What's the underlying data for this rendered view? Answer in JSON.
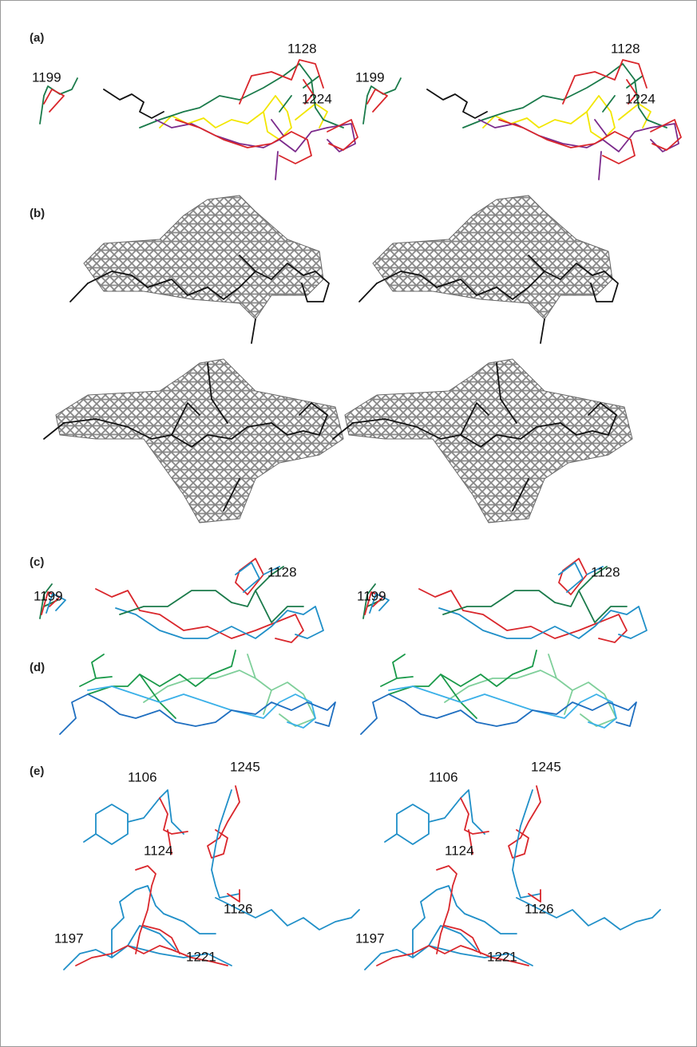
{
  "panels": [
    {
      "label": "(a)",
      "residues": [
        "1199",
        "1128",
        "1224"
      ]
    },
    {
      "label": "(b)"
    },
    {
      "label": "(c)",
      "residues": [
        "1128",
        "1199"
      ]
    },
    {
      "label": "(d)"
    },
    {
      "label": "(e)",
      "residues": [
        "1106",
        "1245",
        "1124",
        "1126",
        "1197",
        "1221"
      ]
    }
  ]
}
